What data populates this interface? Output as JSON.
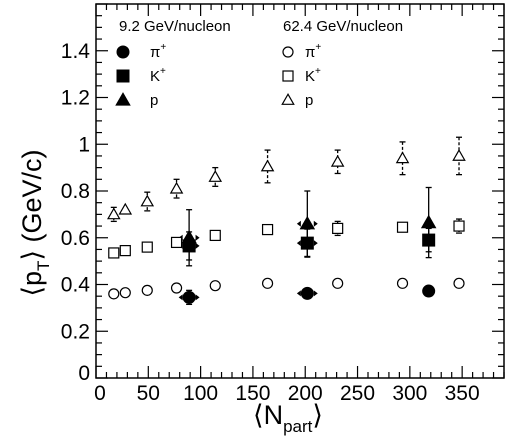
{
  "chart_data": {
    "type": "scatter",
    "xlabel": "⟨N",
    "xlabel_sub": "part",
    "xlabel_close": "⟩",
    "ylabel": "⟨p",
    "ylabel_sub": "T",
    "ylabel_close": "⟩ (GeV/c)",
    "xlim": [
      0,
      390
    ],
    "ylim": [
      0,
      1.6
    ],
    "x_ticks": [
      0,
      50,
      100,
      150,
      200,
      250,
      300,
      350
    ],
    "x_tick_labels": [
      "0",
      "50",
      "100",
      "150",
      "200",
      "250",
      "300",
      "350"
    ],
    "y_ticks": [
      0.2,
      0.4,
      0.6,
      0.8,
      1.0,
      1.2,
      1.4
    ],
    "y_tick_labels": [
      "0.2",
      "0.4",
      "0.6",
      "0.8",
      "1",
      "1.2",
      "1.4"
    ],
    "origin_label": "0",
    "legend": {
      "group1_title": "9.2 GeV/nucleon",
      "group2_title": "62.4 GeV/nucleon",
      "entries": [
        {
          "label": "π",
          "sup": "+",
          "marker": "circle",
          "filled": true
        },
        {
          "label": "K",
          "sup": "+",
          "marker": "square",
          "filled": true
        },
        {
          "label": "p",
          "sup": "",
          "marker": "triangle",
          "filled": true
        },
        {
          "label": "π",
          "sup": "+",
          "marker": "circle",
          "filled": false
        },
        {
          "label": "K",
          "sup": "+",
          "marker": "square",
          "filled": false
        },
        {
          "label": "p",
          "sup": "",
          "marker": "triangle",
          "filled": false
        }
      ]
    },
    "series": [
      {
        "group": "9.2 GeV/nucleon",
        "particle": "π+",
        "marker": "circle",
        "filled": true,
        "x": [
          89,
          202,
          318
        ],
        "y": [
          0.345,
          0.362,
          0.372
        ],
        "yerr": [
          0.03,
          0.0,
          0.0
        ],
        "xerr": [
          10,
          10,
          0
        ]
      },
      {
        "group": "9.2 GeV/nucleon",
        "particle": "K+",
        "marker": "square",
        "filled": true,
        "x": [
          89,
          202,
          318
        ],
        "y": [
          0.565,
          0.577,
          0.59
        ],
        "yerr": [
          0.06,
          0.06,
          0.05
        ],
        "xerr": [
          10,
          10,
          0
        ]
      },
      {
        "group": "9.2 GeV/nucleon",
        "particle": "p",
        "marker": "triangle",
        "filled": true,
        "x": [
          89,
          202,
          318
        ],
        "y": [
          0.6,
          0.66,
          0.665
        ],
        "yerr": [
          0.12,
          0.14,
          0.15
        ],
        "xerr": [
          10,
          10,
          0
        ]
      },
      {
        "group": "62.4 GeV/nucleon",
        "particle": "π+",
        "marker": "circle",
        "filled": false,
        "x": [
          17,
          28,
          49,
          77,
          114,
          164,
          231,
          293,
          347
        ],
        "y": [
          0.36,
          0.365,
          0.375,
          0.385,
          0.395,
          0.405,
          0.405,
          0.405,
          0.405
        ],
        "yerr": [
          0,
          0,
          0,
          0,
          0,
          0,
          0,
          0,
          0
        ]
      },
      {
        "group": "62.4 GeV/nucleon",
        "particle": "K+",
        "marker": "square",
        "filled": false,
        "x": [
          17,
          28,
          49,
          77,
          114,
          164,
          231,
          293,
          347
        ],
        "y": [
          0.535,
          0.545,
          0.56,
          0.58,
          0.61,
          0.635,
          0.64,
          0.645,
          0.65
        ],
        "yerr": [
          0,
          0,
          0,
          0,
          0,
          0,
          0.03,
          0,
          0.03
        ]
      },
      {
        "group": "62.4 GeV/nucleon",
        "particle": "p",
        "marker": "triangle",
        "filled": false,
        "x": [
          17,
          28,
          49,
          77,
          114,
          164,
          231,
          293,
          347
        ],
        "y": [
          0.7,
          0.72,
          0.755,
          0.81,
          0.86,
          0.905,
          0.925,
          0.94,
          0.95
        ],
        "yerr": [
          0.03,
          0,
          0.04,
          0.04,
          0.04,
          0.07,
          0.05,
          0.07,
          0.08
        ]
      }
    ],
    "grid": false,
    "legend_position": "top"
  }
}
